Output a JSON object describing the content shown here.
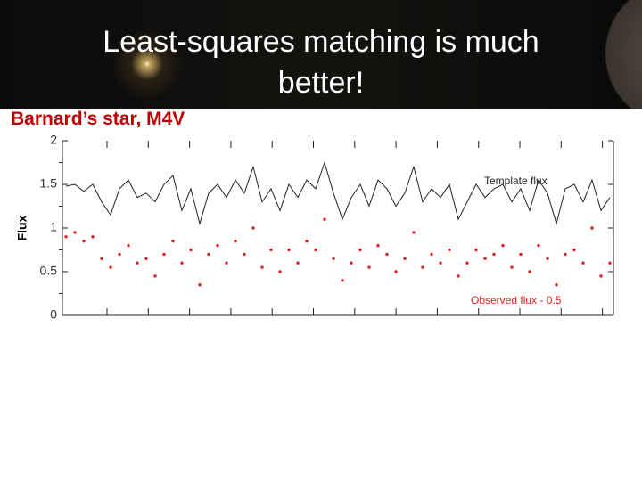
{
  "slide": {
    "title": "Least-squares matching is much better!",
    "subtitle": "Barnard’s star, M4V"
  },
  "chart_data": {
    "type": "line",
    "ylabel": "Flux",
    "ylim": [
      0,
      2
    ],
    "yticks": [
      0,
      0.5,
      1,
      1.5,
      2
    ],
    "annotations": [
      "Template flux",
      "Observed flux - 0.5"
    ],
    "series": [
      {
        "name": "Template flux",
        "type": "line",
        "color": "#222222",
        "values": [
          1.48,
          1.5,
          1.42,
          1.5,
          1.3,
          1.15,
          1.45,
          1.55,
          1.35,
          1.4,
          1.3,
          1.5,
          1.6,
          1.2,
          1.45,
          1.05,
          1.4,
          1.5,
          1.35,
          1.55,
          1.4,
          1.7,
          1.3,
          1.45,
          1.2,
          1.5,
          1.35,
          1.55,
          1.45,
          1.75,
          1.4,
          1.1,
          1.35,
          1.5,
          1.25,
          1.55,
          1.45,
          1.25,
          1.4,
          1.7,
          1.3,
          1.45,
          1.35,
          1.5,
          1.1,
          1.3,
          1.5,
          1.35,
          1.45,
          1.5,
          1.3,
          1.45,
          1.2,
          1.55,
          1.4,
          1.05,
          1.45,
          1.5,
          1.3,
          1.55,
          1.2,
          1.35
        ]
      },
      {
        "name": "Observed flux - 0.5",
        "type": "scatter",
        "color": "#e02020",
        "values": [
          0.9,
          0.95,
          0.85,
          0.9,
          0.65,
          0.55,
          0.7,
          0.8,
          0.6,
          0.65,
          0.45,
          0.7,
          0.85,
          0.6,
          0.75,
          0.35,
          0.7,
          0.8,
          0.6,
          0.85,
          0.7,
          1.0,
          0.55,
          0.75,
          0.5,
          0.75,
          0.6,
          0.85,
          0.75,
          1.1,
          0.65,
          0.4,
          0.6,
          0.75,
          0.55,
          0.8,
          0.7,
          0.5,
          0.65,
          0.95,
          0.55,
          0.7,
          0.6,
          0.75,
          0.45,
          0.6,
          0.75,
          0.65,
          0.7,
          0.8,
          0.55,
          0.7,
          0.5,
          0.8,
          0.65,
          0.35,
          0.7,
          0.75,
          0.6,
          1.0,
          0.45,
          0.6
        ]
      }
    ]
  }
}
